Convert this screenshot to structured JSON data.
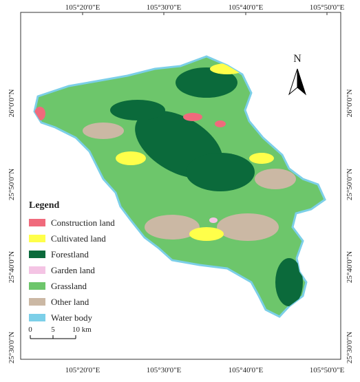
{
  "map": {
    "lon_labels": [
      "105°20'0\"E",
      "105°30'0\"E",
      "105°40'0\"E",
      "105°50'0\"E"
    ],
    "lat_labels": [
      "26°0'0\"N",
      "25°50'0\"N",
      "25°40'0\"N",
      "25°30'0\"N"
    ],
    "north_arrow": "N",
    "legend": {
      "title": "Legend",
      "items": [
        {
          "label": "Construction land",
          "color": "#f06a7c"
        },
        {
          "label": "Cultivated land",
          "color": "#ffff4a"
        },
        {
          "label": "Forestland",
          "color": "#0b6a3b"
        },
        {
          "label": "Garden land",
          "color": "#f4c4e4"
        },
        {
          "label": "Grassland",
          "color": "#6dc66b"
        },
        {
          "label": "Other land",
          "color": "#cbb8a4"
        },
        {
          "label": "Water body",
          "color": "#7ccfe8"
        }
      ]
    },
    "scale_bar": {
      "labels": [
        "0",
        "5",
        "10 km"
      ]
    }
  }
}
